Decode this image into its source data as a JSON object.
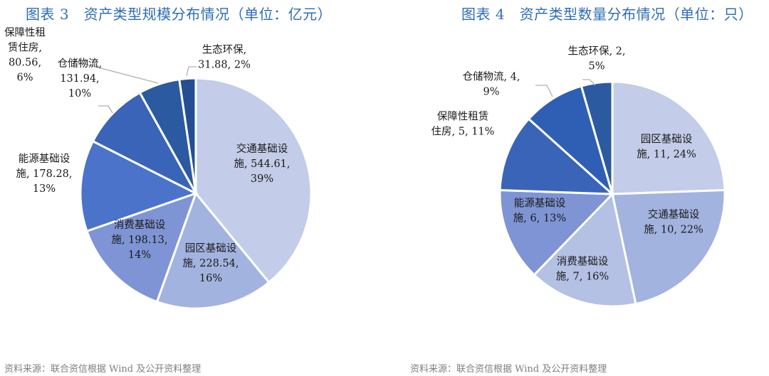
{
  "chart_data": [
    {
      "type": "pie",
      "title": "图表 3　资产类型规模分布情况（单位：亿元）",
      "source": "资料来源：联合资信根据 Wind 及公开资料整理",
      "colors": [
        "#C3CCE8",
        "#A3B3E0",
        "#7F94D4",
        "#4A73C9",
        "#3A64B8",
        "#2C5AA0",
        "#244E92"
      ],
      "slices": [
        {
          "name": "交通基础设施",
          "value": 544.61,
          "percent": "39%",
          "label_lines": [
            "交通基础设",
            "施, 544.61,",
            "39%"
          ]
        },
        {
          "name": "园区基础设施",
          "value": 228.54,
          "percent": "16%",
          "label_lines": [
            "园区基础设",
            "施, 228.54,",
            "16%"
          ]
        },
        {
          "name": "消费基础设施",
          "value": 198.13,
          "percent": "14%",
          "label_lines": [
            "消费基础设",
            "施, 198.13,",
            "14%"
          ]
        },
        {
          "name": "能源基础设施",
          "value": 178.28,
          "percent": "13%",
          "label_lines": [
            "能源基础设",
            "施, 178.28,",
            "13%"
          ]
        },
        {
          "name": "仓储物流",
          "value": 131.94,
          "percent": "10%",
          "label_lines": [
            "仓储物流,",
            "131.94,",
            "10%"
          ]
        },
        {
          "name": "保障性租赁住房",
          "value": 80.56,
          "percent": "6%",
          "label_lines": [
            "保障性租",
            "赁住房,",
            "80.56,",
            "6%"
          ]
        },
        {
          "name": "生态环保",
          "value": 31.88,
          "percent": "2%",
          "label_lines": [
            "生态环保,",
            "31.88, 2%"
          ]
        }
      ]
    },
    {
      "type": "pie",
      "title": "图表 4　资产类型数量分布情况（单位：只）",
      "source": "资料来源：联合资信根据 Wind 及公开资料整理",
      "colors": [
        "#C3CCE8",
        "#A3B3E0",
        "#B4C0E4",
        "#7F94D4",
        "#3A64B8",
        "#2F5FB5",
        "#2C5AA0"
      ],
      "slices": [
        {
          "name": "园区基础设施",
          "value": 11,
          "percent": "24%",
          "label_lines": [
            "园区基础设",
            "施, 11, 24%"
          ]
        },
        {
          "name": "交通基础设施",
          "value": 10,
          "percent": "22%",
          "label_lines": [
            "交通基础设",
            "施, 10, 22%"
          ]
        },
        {
          "name": "消费基础设施",
          "value": 7,
          "percent": "16%",
          "label_lines": [
            "消费基础设",
            "施, 7, 16%"
          ]
        },
        {
          "name": "能源基础设施",
          "value": 6,
          "percent": "13%",
          "label_lines": [
            "能源基础设",
            "施, 6, 13%"
          ]
        },
        {
          "name": "保障性租赁住房",
          "value": 5,
          "percent": "11%",
          "label_lines": [
            "保障性租赁",
            "住房, 5, 11%"
          ]
        },
        {
          "name": "仓储物流",
          "value": 4,
          "percent": "9%",
          "label_lines": [
            "仓储物流, 4,",
            "9%"
          ]
        },
        {
          "name": "生态环保",
          "value": 2,
          "percent": "5%",
          "label_lines": [
            "生态环保, 2,",
            "5%"
          ]
        }
      ]
    }
  ]
}
